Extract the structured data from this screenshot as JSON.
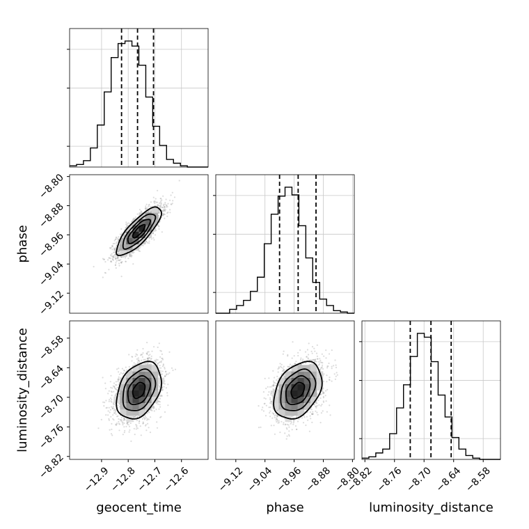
{
  "chart_data": {
    "type": "corner",
    "parameters": [
      "geocent_time",
      "phase",
      "luminosity_distance"
    ],
    "axis_labels": {
      "geocent_time": "geocent_time",
      "phase": "phase",
      "luminosity_distance": "luminosity_distance"
    },
    "ranges": {
      "geocent_time": [
        -13.02,
        -12.5
      ],
      "phase": [
        -9.175,
        -8.795
      ],
      "luminosity_distance": [
        -8.826,
        -8.545
      ]
    },
    "tick_labels": {
      "geocent_time": [
        "−12.9",
        "−12.8",
        "−12.7",
        "−12.6"
      ],
      "phase": [
        "−9.12",
        "−9.04",
        "−8.96",
        "−8.88",
        "−8.80"
      ],
      "luminosity_distance": [
        "−8.82",
        "−8.76",
        "−8.70",
        "−8.64",
        "−8.58"
      ]
    },
    "tick_values": {
      "geocent_time": [
        -12.9,
        -12.8,
        -12.7,
        -12.6
      ],
      "phase": [
        -9.12,
        -9.04,
        -8.96,
        -8.88,
        -8.8
      ],
      "luminosity_distance": [
        -8.82,
        -8.76,
        -8.7,
        -8.64,
        -8.58
      ]
    },
    "histograms": {
      "geocent_time": {
        "counts": [
          1,
          2,
          5,
          15,
          33,
          59,
          86,
          97,
          99,
          95,
          80,
          55,
          32,
          17,
          6,
          3,
          1,
          0,
          0,
          0
        ],
        "quantiles": [
          -12.825,
          -12.765,
          -12.705
        ]
      },
      "phase": {
        "counts": [
          0,
          0,
          3,
          6,
          10,
          17,
          28,
          54,
          77,
          91,
          98,
          92,
          68,
          43,
          24,
          11,
          6,
          2,
          1,
          0
        ],
        "quantiles": [
          -9.0,
          -8.949,
          -8.9
        ]
      },
      "luminosity_distance": {
        "counts": [
          1,
          2,
          5,
          8,
          20,
          40,
          58,
          80,
          98,
          95,
          76,
          50,
          33,
          17,
          8,
          3,
          1,
          0,
          0,
          0
        ],
        "quantiles": [
          -8.728,
          -8.686,
          -8.645
        ]
      }
    },
    "posterior_2d": {
      "means": {
        "geocent_time": -12.76,
        "phase": -8.95,
        "luminosity_distance": -8.686
      },
      "sigmas": {
        "geocent_time": 0.042,
        "phase": 0.033,
        "luminosity_distance": 0.029
      },
      "correlations": {
        "geocent_time|phase": 0.8,
        "geocent_time|luminosity_distance": 0.35,
        "phase|luminosity_distance": 0.35
      }
    },
    "grid": true
  }
}
